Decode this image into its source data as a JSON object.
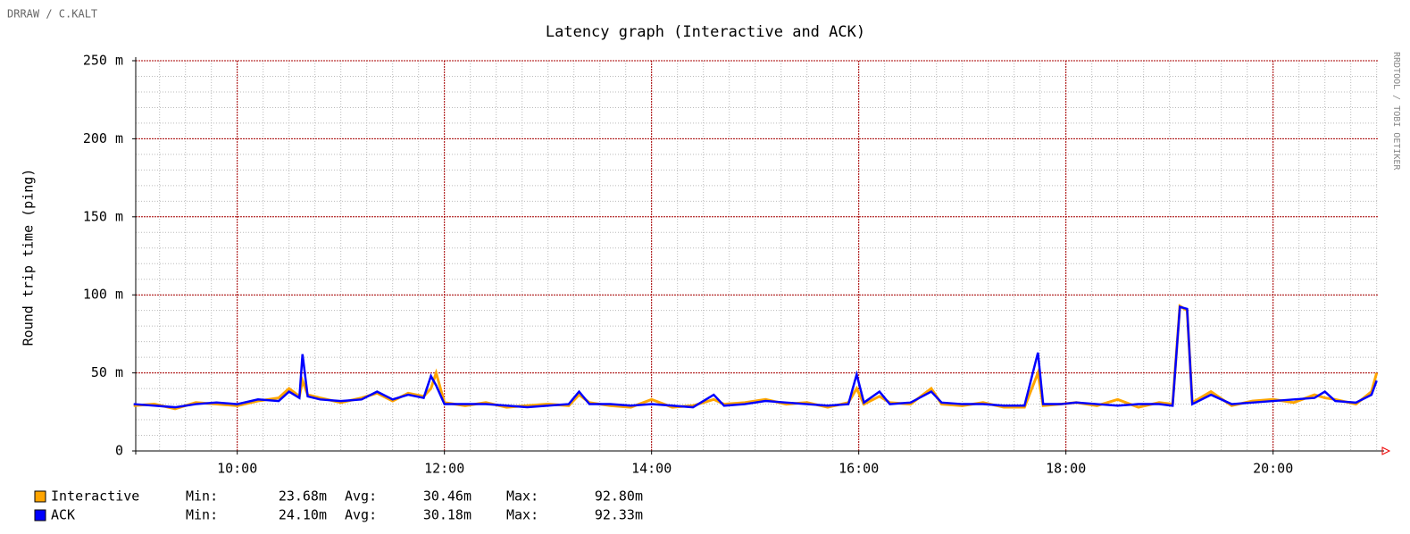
{
  "chart_data": {
    "type": "line",
    "title": "Latency graph (Interactive and ACK)",
    "credit_left": "DRRAW / C.KALT",
    "credit_right": "RRDTOOL / TOBI OETIKER",
    "y_label": "Round trip time (ping)",
    "xlim": [
      9.02,
      21.02
    ],
    "ylim": [
      0,
      250
    ],
    "xticks": [
      {
        "value": 10,
        "label": "10:00"
      },
      {
        "value": 12,
        "label": "12:00"
      },
      {
        "value": 14,
        "label": "14:00"
      },
      {
        "value": 16,
        "label": "16:00"
      },
      {
        "value": 18,
        "label": "18:00"
      },
      {
        "value": 20,
        "label": "20:00"
      }
    ],
    "yticks": [
      0,
      {
        "value": 50,
        "label": "50 m"
      },
      {
        "value": 100,
        "label": "100 m"
      },
      {
        "value": 150,
        "label": "150 m"
      },
      {
        "value": 200,
        "label": "200 m"
      },
      {
        "value": 250,
        "label": "250 m"
      }
    ],
    "x_minor_step": 0.25,
    "y_minor_step": 10,
    "grid": true,
    "x": [
      9.0,
      9.2,
      9.4,
      9.6,
      9.8,
      10.0,
      10.2,
      10.4,
      10.5,
      10.6,
      10.63,
      10.68,
      10.8,
      11.0,
      11.2,
      11.35,
      11.5,
      11.65,
      11.8,
      11.87,
      11.92,
      12.0,
      12.2,
      12.4,
      12.6,
      12.8,
      13.0,
      13.2,
      13.3,
      13.4,
      13.6,
      13.8,
      14.0,
      14.2,
      14.4,
      14.6,
      14.7,
      14.9,
      15.1,
      15.3,
      15.5,
      15.7,
      15.9,
      15.98,
      16.05,
      16.2,
      16.3,
      16.5,
      16.7,
      16.8,
      17.0,
      17.2,
      17.4,
      17.6,
      17.73,
      17.78,
      17.95,
      18.1,
      18.3,
      18.5,
      18.7,
      18.9,
      19.03,
      19.1,
      19.17,
      19.22,
      19.4,
      19.6,
      19.8,
      20.0,
      20.2,
      20.4,
      20.5,
      20.6,
      20.8,
      20.95,
      21.0
    ],
    "series": [
      {
        "name": "Interactive",
        "color": "#ffa500",
        "stats": [
          {
            "label": "Min:",
            "value": "23.68m"
          },
          {
            "label": "Avg:",
            "value": "30.46m"
          },
          {
            "label": "Max:",
            "value": "92.80m"
          }
        ],
        "values": [
          29,
          30,
          27,
          31,
          30,
          29,
          32,
          34,
          40,
          35,
          45,
          36,
          34,
          31,
          34,
          37,
          32,
          37,
          35,
          40,
          50,
          31,
          29,
          31,
          28,
          29,
          30,
          29,
          36,
          31,
          29,
          28,
          33,
          28,
          29,
          33,
          30,
          31,
          33,
          30,
          31,
          28,
          31,
          40,
          30,
          35,
          31,
          30,
          40,
          30,
          29,
          31,
          28,
          28,
          50,
          29,
          30,
          31,
          29,
          33,
          28,
          31,
          30,
          92.8,
          90,
          31,
          38,
          29,
          32,
          33,
          31,
          36,
          34,
          33,
          30,
          38,
          50
        ]
      },
      {
        "name": "ACK",
        "color": "#0000ff",
        "stats": [
          {
            "label": "Min:",
            "value": "24.10m"
          },
          {
            "label": "Avg:",
            "value": "30.18m"
          },
          {
            "label": "Max:",
            "value": "92.33m"
          }
        ],
        "values": [
          30,
          29,
          28,
          30,
          31,
          30,
          33,
          32,
          38,
          34,
          62,
          35,
          33,
          32,
          33,
          38,
          33,
          36,
          34,
          48,
          42,
          30,
          30,
          30,
          29,
          28,
          29,
          30,
          38,
          30,
          30,
          29,
          30,
          29,
          28,
          36,
          29,
          30,
          32,
          31,
          30,
          29,
          30,
          49,
          31,
          38,
          30,
          31,
          38,
          31,
          30,
          30,
          29,
          29,
          63,
          30,
          30,
          31,
          30,
          29,
          30,
          30,
          29,
          92.33,
          91,
          30,
          36,
          30,
          31,
          32,
          33,
          34,
          38,
          32,
          31,
          36,
          45
        ]
      }
    ]
  }
}
